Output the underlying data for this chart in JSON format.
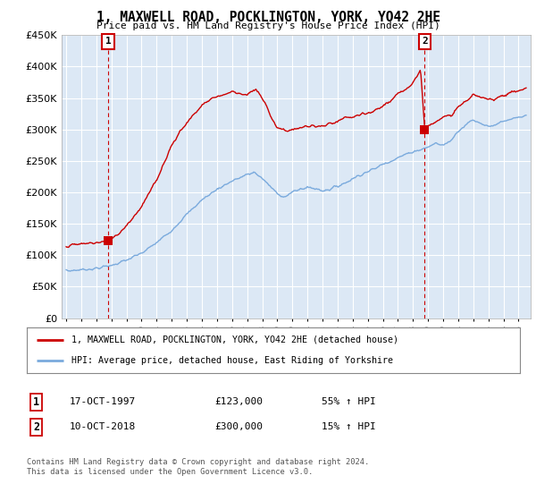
{
  "title": "1, MAXWELL ROAD, POCKLINGTON, YORK, YO42 2HE",
  "subtitle": "Price paid vs. HM Land Registry's House Price Index (HPI)",
  "ylim": [
    0,
    450000
  ],
  "xlim_start": 1994.7,
  "xlim_end": 2025.8,
  "sale1_year": 1997.79,
  "sale1_price": 123000,
  "sale1_label": "1",
  "sale1_date": "17-OCT-1997",
  "sale1_pct": "55% ↑ HPI",
  "sale2_year": 2018.78,
  "sale2_price": 300000,
  "sale2_label": "2",
  "sale2_date": "10-OCT-2018",
  "sale2_pct": "15% ↑ HPI",
  "line_color_house": "#cc0000",
  "line_color_hpi": "#7aaadd",
  "bg_color": "#dce8f5",
  "grid_color": "#ffffff",
  "legend_line1": "1, MAXWELL ROAD, POCKLINGTON, YORK, YO42 2HE (detached house)",
  "legend_line2": "HPI: Average price, detached house, East Riding of Yorkshire",
  "footnote": "Contains HM Land Registry data © Crown copyright and database right 2024.\nThis data is licensed under the Open Government Licence v3.0.",
  "hpi_years": [
    1995,
    1996,
    1997,
    1998,
    1999,
    2000,
    2001,
    2002,
    2003,
    2004,
    2005,
    2006,
    2007,
    2007.5,
    2008,
    2008.5,
    2009,
    2009.5,
    2010,
    2010.5,
    2011,
    2011.5,
    2012,
    2012.5,
    2013,
    2013.5,
    2014,
    2014.5,
    2015,
    2015.5,
    2016,
    2016.5,
    2017,
    2017.5,
    2018,
    2018.5,
    2019,
    2019.5,
    2020,
    2020.5,
    2021,
    2021.5,
    2022,
    2022.5,
    2023,
    2023.5,
    2024,
    2024.5,
    2025,
    2025.5
  ],
  "hpi_vals": [
    75000,
    77000,
    79000,
    84000,
    92000,
    103000,
    120000,
    140000,
    165000,
    188000,
    205000,
    218000,
    228000,
    232000,
    222000,
    210000,
    198000,
    193000,
    200000,
    205000,
    208000,
    206000,
    203000,
    205000,
    210000,
    215000,
    222000,
    228000,
    233000,
    238000,
    245000,
    250000,
    255000,
    260000,
    265000,
    268000,
    272000,
    278000,
    275000,
    282000,
    298000,
    308000,
    315000,
    310000,
    305000,
    308000,
    312000,
    316000,
    318000,
    322000
  ],
  "house_years": [
    1995,
    1995.5,
    1996,
    1996.5,
    1997,
    1997.5,
    1997.79,
    1998,
    1998.5,
    1999,
    1999.5,
    2000,
    2000.5,
    2001,
    2001.5,
    2002,
    2002.5,
    2003,
    2003.5,
    2004,
    2004.5,
    2005,
    2005.5,
    2006,
    2006.5,
    2007,
    2007.3,
    2007.6,
    2008,
    2008.5,
    2009,
    2009.5,
    2010,
    2010.5,
    2011,
    2011.5,
    2012,
    2012.5,
    2013,
    2013.5,
    2014,
    2014.5,
    2015,
    2015.5,
    2016,
    2016.5,
    2017,
    2017.5,
    2018,
    2018.5,
    2018.78,
    2019,
    2019.5,
    2020,
    2020.5,
    2021,
    2021.5,
    2022,
    2022.5,
    2023,
    2023.5,
    2024,
    2024.5,
    2025,
    2025.5
  ],
  "house_vals": [
    115000,
    116000,
    118000,
    119000,
    120000,
    121500,
    123000,
    127000,
    135000,
    148000,
    162000,
    178000,
    198000,
    220000,
    248000,
    275000,
    295000,
    310000,
    325000,
    338000,
    348000,
    352000,
    356000,
    360000,
    358000,
    355000,
    360000,
    362000,
    350000,
    325000,
    303000,
    298000,
    300000,
    302000,
    305000,
    305000,
    305000,
    308000,
    312000,
    318000,
    320000,
    322000,
    325000,
    330000,
    338000,
    345000,
    355000,
    365000,
    375000,
    395000,
    300000,
    305000,
    315000,
    318000,
    322000,
    335000,
    345000,
    355000,
    350000,
    348000,
    350000,
    355000,
    358000,
    362000,
    365000
  ]
}
